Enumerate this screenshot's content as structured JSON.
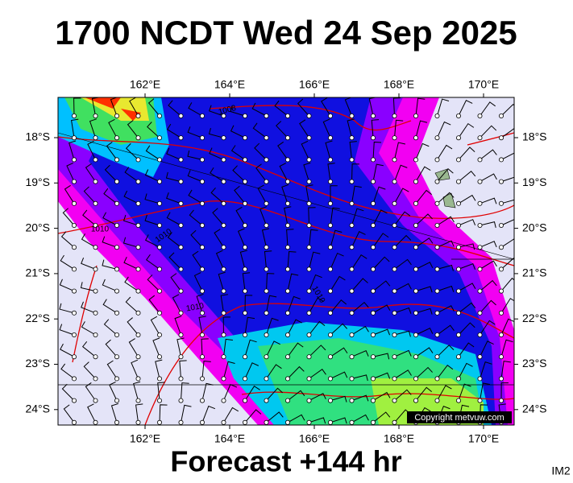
{
  "header": {
    "title": "1700 NCDT Wed 24 Sep 2025"
  },
  "map": {
    "lon_labels": [
      "162°E",
      "164°E",
      "166°E",
      "168°E",
      "170°E"
    ],
    "lat_labels": [
      "18°S",
      "19°S",
      "20°S",
      "21°S",
      "22°S",
      "23°S",
      "24°S"
    ],
    "isobar_labels": [
      "1008",
      "1010",
      "1010",
      "1010",
      "1010"
    ],
    "copyright": "Copyright metvuw.com"
  },
  "footer": {
    "forecast": "Forecast +144 hr",
    "code": "IM2"
  }
}
